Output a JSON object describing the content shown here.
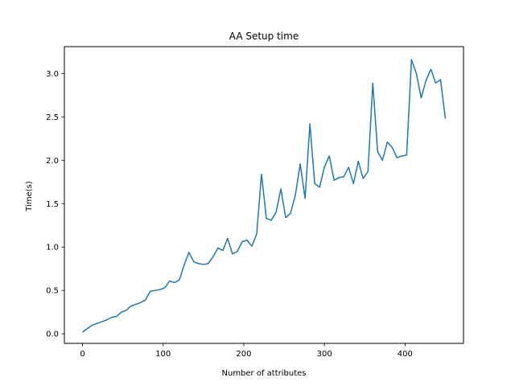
{
  "chart_data": {
    "type": "line",
    "title": "AA Setup time",
    "xlabel": "Number of attributes",
    "ylabel": "Time(s)",
    "xlim": [
      -22.5,
      472.5
    ],
    "ylim": [
      -0.11,
      3.31
    ],
    "xticks": [
      0,
      100,
      200,
      300,
      400
    ],
    "yticks": [
      0.0,
      0.5,
      1.0,
      1.5,
      2.0,
      2.5,
      3.0
    ],
    "xtick_labels": [
      "0",
      "100",
      "200",
      "300",
      "400"
    ],
    "ytick_labels": [
      "0.0",
      "0.5",
      "1.0",
      "1.5",
      "2.0",
      "2.5",
      "3.0"
    ],
    "grid": false,
    "series": [
      {
        "color": "#1f77b4",
        "x": [
          0,
          6,
          12,
          18,
          24,
          30,
          36,
          42,
          48,
          54,
          60,
          66,
          72,
          78,
          84,
          90,
          96,
          102,
          108,
          114,
          120,
          126,
          132,
          138,
          144,
          150,
          156,
          162,
          168,
          174,
          180,
          186,
          192,
          198,
          204,
          210,
          216,
          222,
          228,
          234,
          240,
          246,
          252,
          258,
          264,
          270,
          276,
          282,
          288,
          294,
          300,
          306,
          312,
          318,
          324,
          330,
          336,
          342,
          348,
          354,
          360,
          366,
          372,
          378,
          384,
          390,
          396,
          402,
          408,
          414,
          420,
          426,
          432,
          438,
          444,
          450
        ],
        "y": [
          0.02,
          0.06,
          0.1,
          0.12,
          0.14,
          0.16,
          0.19,
          0.2,
          0.25,
          0.27,
          0.32,
          0.34,
          0.36,
          0.39,
          0.49,
          0.5,
          0.51,
          0.53,
          0.61,
          0.59,
          0.62,
          0.79,
          0.94,
          0.83,
          0.81,
          0.8,
          0.81,
          0.89,
          0.99,
          0.96,
          1.1,
          0.92,
          0.95,
          1.06,
          1.08,
          1.01,
          1.15,
          1.84,
          1.33,
          1.31,
          1.4,
          1.67,
          1.34,
          1.39,
          1.6,
          1.96,
          1.56,
          2.42,
          1.73,
          1.69,
          1.92,
          2.05,
          1.77,
          1.8,
          1.81,
          1.92,
          1.73,
          1.99,
          1.79,
          1.87,
          2.89,
          2.1,
          2.0,
          2.21,
          2.15,
          2.03,
          2.05,
          2.06,
          3.16,
          3.0,
          2.72,
          2.92,
          3.05,
          2.89,
          2.93,
          2.48
        ]
      }
    ]
  }
}
